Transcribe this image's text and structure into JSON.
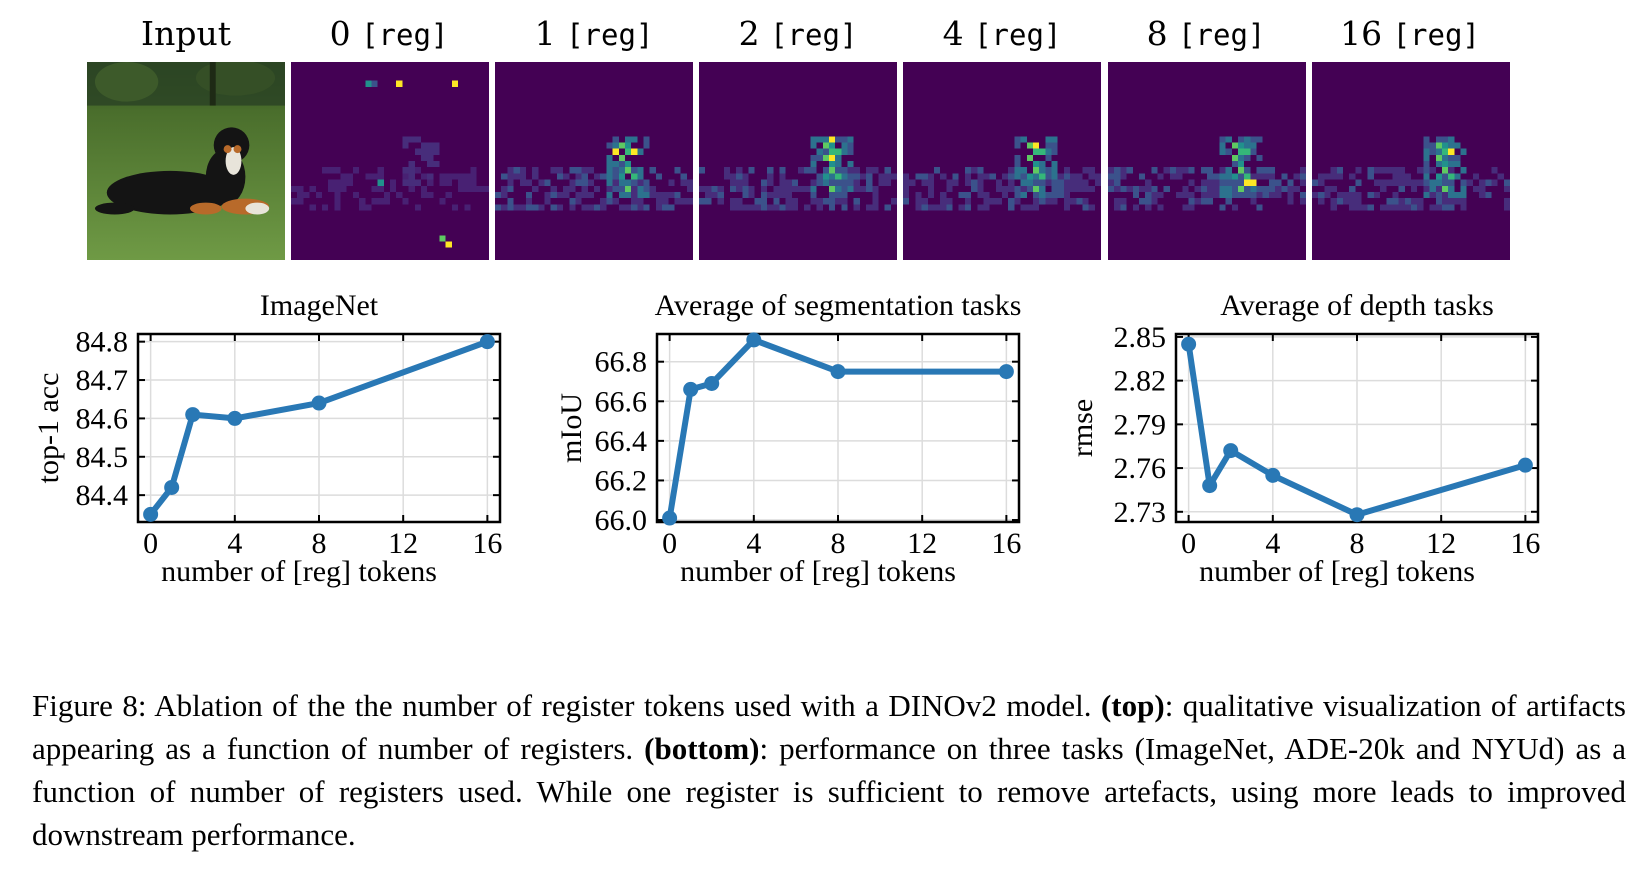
{
  "figure": {
    "panels": [
      {
        "id": "input",
        "label_number": "",
        "label_suffix": "",
        "label_text": "Input"
      },
      {
        "id": "reg0",
        "label_number": "0",
        "label_suffix": "[reg]",
        "label_text": ""
      },
      {
        "id": "reg1",
        "label_number": "1",
        "label_suffix": "[reg]",
        "label_text": ""
      },
      {
        "id": "reg2",
        "label_number": "2",
        "label_suffix": "[reg]",
        "label_text": ""
      },
      {
        "id": "reg4",
        "label_number": "4",
        "label_suffix": "[reg]",
        "label_text": ""
      },
      {
        "id": "reg8",
        "label_number": "8",
        "label_suffix": "[reg]",
        "label_text": ""
      },
      {
        "id": "reg16",
        "label_number": "16",
        "label_suffix": "[reg]",
        "label_text": ""
      }
    ],
    "colors": {
      "heatmap_background": "#440154",
      "heatmap_low": "#3b528b",
      "heatmap_mid": "#21918c",
      "heatmap_high": "#5ec962",
      "heatmap_peak": "#fde725",
      "line": "#2978b5",
      "grass": "#5d8a3a",
      "dog_black": "#141414",
      "dog_tan": "#b86a2a"
    }
  },
  "chart_data": [
    {
      "type": "line",
      "title": "ImageNet",
      "xlabel": "number of [reg] tokens",
      "ylabel": "top-1 acc",
      "x": [
        0,
        1,
        2,
        4,
        8,
        16
      ],
      "y": [
        84.35,
        84.42,
        84.61,
        84.6,
        84.64,
        84.8
      ],
      "xticks": [
        "0",
        "4",
        "8",
        "12",
        "16"
      ],
      "yticks": [
        "84.4",
        "84.5",
        "84.6",
        "84.7",
        "84.8"
      ],
      "xlim": [
        -0.6,
        16.6
      ],
      "ylim": [
        84.33,
        84.82
      ],
      "grid": true
    },
    {
      "type": "line",
      "title": "Average of segmentation tasks",
      "xlabel": "number of [reg] tokens",
      "ylabel": "mIoU",
      "x": [
        0,
        1,
        2,
        4,
        8,
        16
      ],
      "y": [
        66.01,
        66.66,
        66.69,
        66.91,
        66.75,
        66.75
      ],
      "xticks": [
        "0",
        "4",
        "8",
        "12",
        "16"
      ],
      "yticks": [
        "66.0",
        "66.2",
        "66.4",
        "66.6",
        "66.8"
      ],
      "xlim": [
        -0.6,
        16.6
      ],
      "ylim": [
        65.99,
        66.94
      ],
      "grid": true
    },
    {
      "type": "line",
      "title": "Average of depth tasks",
      "xlabel": "number of [reg] tokens",
      "ylabel": "rmse",
      "x": [
        0,
        1,
        2,
        4,
        8,
        16
      ],
      "y": [
        2.845,
        2.748,
        2.772,
        2.755,
        2.728,
        2.762
      ],
      "xticks": [
        "0",
        "4",
        "8",
        "12",
        "16"
      ],
      "yticks": [
        "2.73",
        "2.76",
        "2.79",
        "2.82",
        "2.85"
      ],
      "xlim": [
        -0.6,
        16.6
      ],
      "ylim": [
        2.723,
        2.852
      ],
      "grid": true
    }
  ],
  "caption": {
    "figure_label": "Figure 8:",
    "sentence1": "Ablation of the the number of register tokens used with a DINOv2 model.",
    "top_label": "(top)",
    "top_text": ": qualitative visualization of artifacts appearing as a function of number of registers.",
    "bottom_label": "(bottom)",
    "bottom_text": ": performance on three tasks (ImageNet, ADE-20k and NYUd) as a function of number of registers used. While one register is sufficient to remove artefacts, using more leads to improved downstream performance."
  }
}
